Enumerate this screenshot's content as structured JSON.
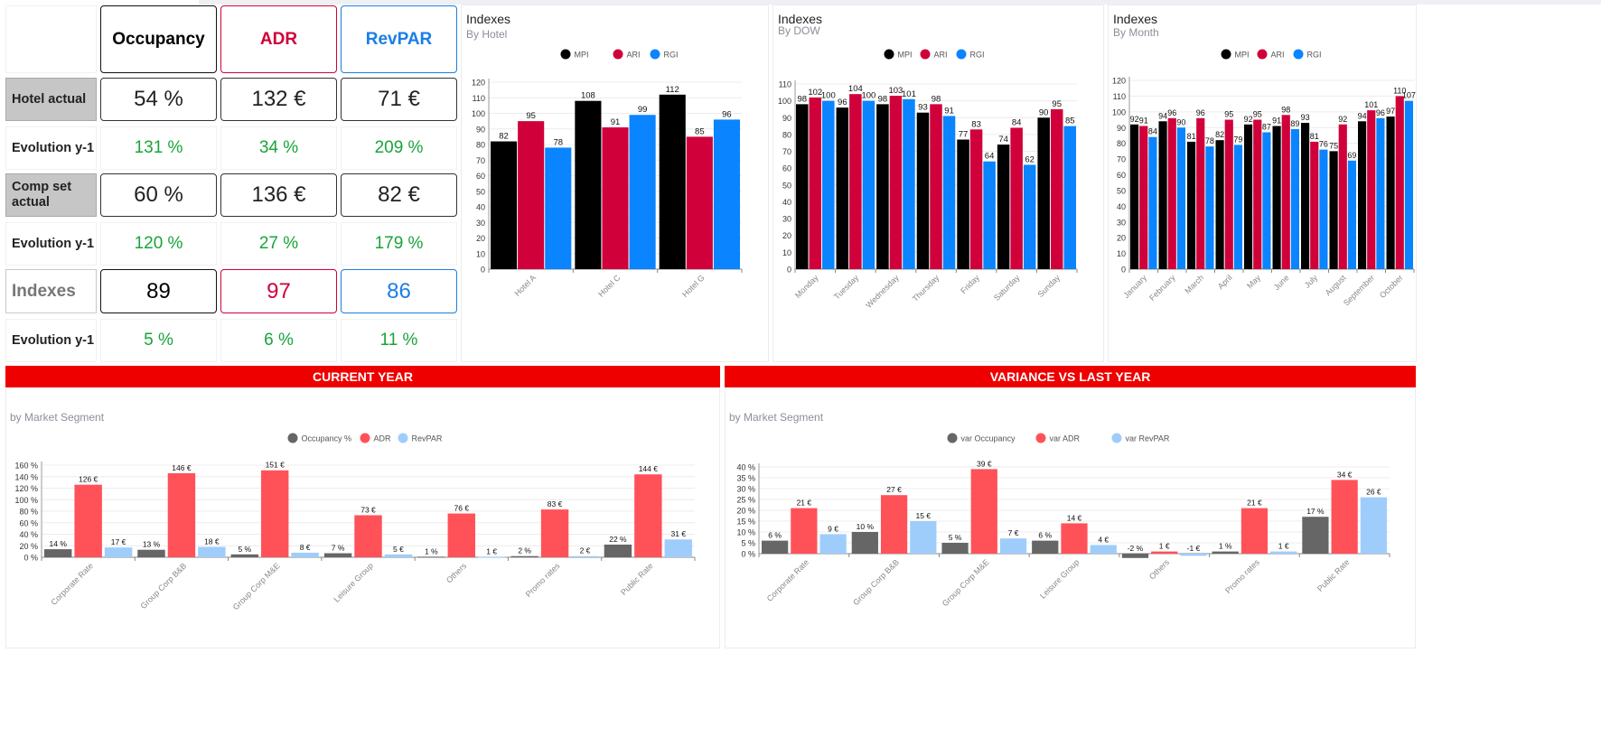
{
  "kpi": {
    "headers": {
      "occupancy": "Occupancy",
      "adr": "ADR",
      "revpar": "RevPAR"
    },
    "colors": {
      "occupancy": "#000000",
      "adr": "#d0003a",
      "revpar": "#1a7ee6",
      "green": "#18a43a"
    },
    "rows": {
      "hotel_actual": {
        "label": "Hotel actual",
        "occupancy": "54 %",
        "adr": "132 €",
        "revpar": "71 €"
      },
      "evolution1": {
        "label": "Evolution y-1",
        "occupancy": "131 %",
        "adr": "34 %",
        "revpar": "209 %"
      },
      "comp_set_actual": {
        "label": "Comp set actual",
        "occupancy": "60 %",
        "adr": "136 €",
        "revpar": "82 €"
      },
      "evolution2": {
        "label": "Evolution y-1",
        "occupancy": "120 %",
        "adr": "27 %",
        "revpar": "179 %"
      },
      "indexes": {
        "label": "Indexes",
        "occupancy": "89",
        "adr": "97",
        "revpar": "86"
      },
      "evolution3": {
        "label": "Evolution y-1",
        "occupancy": "5 %",
        "adr": "6 %",
        "revpar": "11 %"
      }
    }
  },
  "banners": {
    "current_year": "CURRENT YEAR",
    "variance": "VARIANCE VS LAST YEAR"
  },
  "chart_data": [
    {
      "id": "hotel",
      "type": "bar",
      "title": "Indexes",
      "subtitle": "By Hotel",
      "categories": [
        "Hotel A",
        "Hotel C",
        "Hotel G"
      ],
      "series": [
        {
          "name": "MPI",
          "color": "#000000",
          "values": [
            82,
            108,
            112
          ]
        },
        {
          "name": "ARI",
          "color": "#d0003a",
          "values": [
            95,
            91,
            85
          ]
        },
        {
          "name": "RGI",
          "color": "#0a84ff",
          "values": [
            78,
            99,
            96
          ]
        }
      ],
      "ylim": [
        0,
        120
      ],
      "yticks": [
        0,
        10,
        20,
        30,
        40,
        50,
        60,
        70,
        80,
        90,
        100,
        110,
        120
      ],
      "grid": true,
      "legend": "top-center",
      "value_labels": true
    },
    {
      "id": "dow",
      "type": "bar",
      "title": "Indexes",
      "subtitle": "By DOW",
      "categories": [
        "Monday",
        "Tuesday",
        "Wednesday",
        "Thursday",
        "Friday",
        "Saturday",
        "Sunday"
      ],
      "series": [
        {
          "name": "MPI",
          "color": "#000000",
          "values": [
            98,
            96,
            98,
            93,
            77,
            74,
            90
          ]
        },
        {
          "name": "ARI",
          "color": "#d0003a",
          "values": [
            102,
            104,
            103,
            98,
            83,
            84,
            95
          ]
        },
        {
          "name": "RGI",
          "color": "#0a84ff",
          "values": [
            100,
            100,
            101,
            91,
            64,
            62,
            85
          ]
        }
      ],
      "ylim": [
        0,
        110
      ],
      "yticks": [
        0,
        10,
        20,
        30,
        40,
        50,
        60,
        70,
        80,
        90,
        100,
        110
      ],
      "grid": true,
      "legend": "top-center",
      "value_labels": true
    },
    {
      "id": "month",
      "type": "bar",
      "title": "Indexes",
      "subtitle": "By Month",
      "categories": [
        "January",
        "February",
        "March",
        "April",
        "May",
        "June",
        "July",
        "August",
        "September",
        "October"
      ],
      "series": [
        {
          "name": "MPI",
          "color": "#000000",
          "values": [
            92,
            94,
            81,
            82,
            92,
            91,
            93,
            75,
            94,
            97
          ]
        },
        {
          "name": "ARI",
          "color": "#d0003a",
          "values": [
            91,
            96,
            96,
            95,
            95,
            98,
            81,
            92,
            101,
            110
          ]
        },
        {
          "name": "RGI",
          "color": "#0a84ff",
          "values": [
            84,
            90,
            78,
            79,
            87,
            89,
            76,
            69,
            96,
            107
          ]
        }
      ],
      "ylim": [
        0,
        120
      ],
      "yticks": [
        0,
        10,
        20,
        30,
        40,
        50,
        60,
        70,
        80,
        90,
        100,
        110,
        120
      ],
      "grid": true,
      "legend": "top-center",
      "value_labels": true
    },
    {
      "id": "segment_current",
      "type": "bar",
      "title": "",
      "subtitle": "by Market Segment",
      "categories": [
        "Corporate Rate",
        "Group Corp B&B",
        "Group Corp M&E",
        "Leisure Group",
        "Others",
        "Promo rates",
        "Public Rate"
      ],
      "series": [
        {
          "name": "Occupancy %",
          "color": "#666666",
          "values": [
            14,
            13,
            5,
            7,
            1,
            2,
            22
          ],
          "labels": [
            "14 %",
            "13 %",
            "5 %",
            "7 %",
            "1 %",
            "2 %",
            "22 %"
          ]
        },
        {
          "name": "ADR",
          "color": "#ff5258",
          "values": [
            126,
            146,
            151,
            73,
            76,
            83,
            144
          ],
          "labels": [
            "126 €",
            "146 €",
            "151 €",
            "73 €",
            "76 €",
            "83 €",
            "144 €"
          ]
        },
        {
          "name": "RevPAR",
          "color": "#9fcdfb",
          "values": [
            17,
            18,
            8,
            5,
            1,
            2,
            31
          ],
          "labels": [
            "17 €",
            "18 €",
            "8 €",
            "5 €",
            "1 €",
            "2 €",
            "31 €"
          ]
        }
      ],
      "ylim": [
        0,
        160
      ],
      "yticks": [
        0,
        20,
        40,
        60,
        80,
        100,
        120,
        140,
        160
      ],
      "ytick_labels": [
        "0 %",
        "20 %",
        "40 %",
        "60 %",
        "80 %",
        "100 %",
        "120 %",
        "140 %",
        "160 %"
      ],
      "grid": true,
      "legend": "top-center",
      "value_labels": true
    },
    {
      "id": "segment_variance",
      "type": "bar",
      "title": "",
      "subtitle": "by Market Segment",
      "categories": [
        "Corporate Rate",
        "Group Corp B&B",
        "Group Corp M&E",
        "Leisure Group",
        "Others",
        "Promo rates",
        "Public Rate"
      ],
      "series": [
        {
          "name": "var Occupancy",
          "color": "#666666",
          "values": [
            6,
            10,
            5,
            6,
            -2,
            1,
            17
          ],
          "labels": [
            "6 %",
            "10 %",
            "5 %",
            "6 %",
            "-2 %",
            "1 %",
            "17 %"
          ]
        },
        {
          "name": "var ADR",
          "color": "#ff5258",
          "values": [
            21,
            27,
            39,
            14,
            1,
            21,
            34
          ],
          "labels": [
            "21 €",
            "27 €",
            "39 €",
            "14 €",
            "1 €",
            "21 €",
            "34 €"
          ]
        },
        {
          "name": "var RevPAR",
          "color": "#9fcdfb",
          "values": [
            9,
            15,
            7,
            4,
            -1,
            1,
            26
          ],
          "labels": [
            "9 €",
            "15 €",
            "7 €",
            "4 €",
            "-1 €",
            "1 €",
            "26 €"
          ]
        }
      ],
      "ylim": [
        0,
        40
      ],
      "yticks": [
        0,
        5,
        10,
        15,
        20,
        25,
        30,
        35,
        40
      ],
      "ytick_labels": [
        "0 %",
        "5 %",
        "10 %",
        "15 %",
        "20 %",
        "25 %",
        "30 %",
        "35 %",
        "40 %"
      ],
      "grid": true,
      "legend": "top-center",
      "value_labels": true
    }
  ]
}
